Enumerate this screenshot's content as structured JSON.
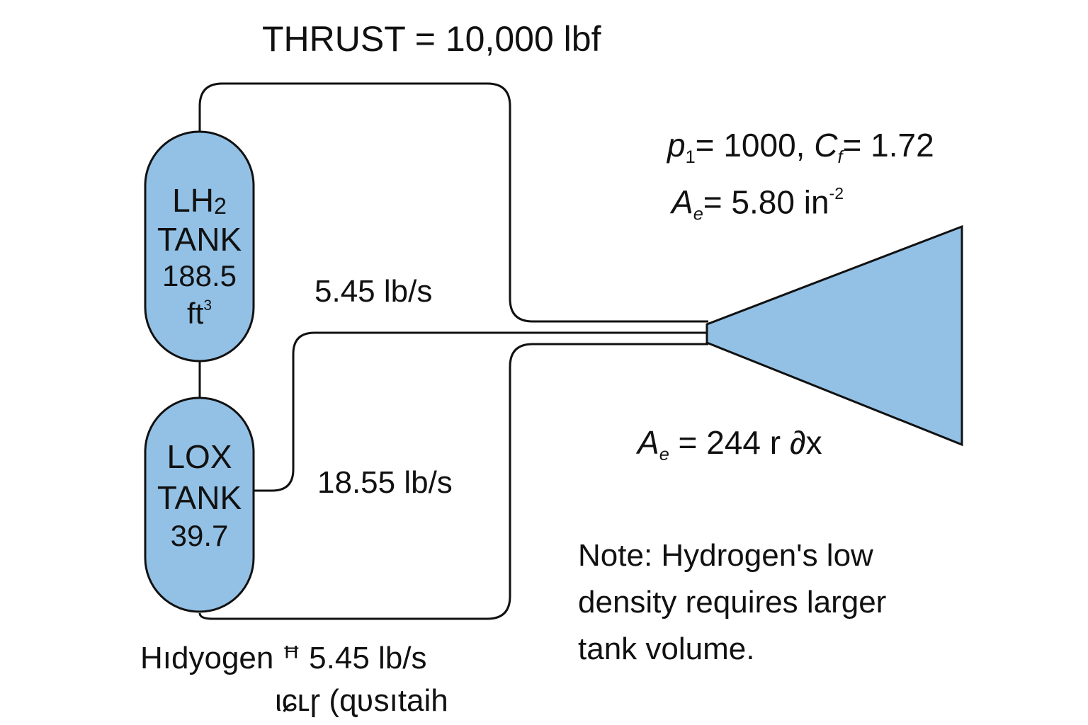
{
  "title": "THRUST = 10,000 lbf",
  "colors": {
    "tank_fill": "#93c1e6",
    "nozzle_fill": "#93c1e6",
    "line": "#111111",
    "background": "#ffffff"
  },
  "lh2_tank": {
    "name_html": "LH<sub class=\"s\" style=\"font-size:0.7em;vertical-align:-0.1em\">2</sub>",
    "label": "TANK",
    "volume": "188.5",
    "unit_html": "ft<sup class=\"s\">3</sup>"
  },
  "lox_tank": {
    "name": "LOX",
    "label": "TANK",
    "volume": "39.7"
  },
  "flows": {
    "upper": "5.45 lb/s",
    "lower": "18.55 lb/s"
  },
  "params": {
    "line1_html": "<span class=\"it\">p</span><sub class=\"s\">1</sub>= 1000, <span class=\"it\">C</span><sub class=\"s it\">f</sub>= 1.72",
    "line2_html": "<span class=\"it\">A</span><sub class=\"s it\">e</sub>= 5.80 in<sup class=\"s\">-2</sup>",
    "exit_html": "<span class=\"it\">A</span><sub class=\"s it\">e</sub> = 244 r <span class=\"it\">∂</span>x"
  },
  "note": {
    "line1": "Note: Hydrogen's low",
    "line2": "density requires larger",
    "line3": "tank volume."
  },
  "footer": {
    "line1": "Hıdyogen ꟸ 5.45 lb/s",
    "line2": "ιɕʟɼ (ɋʋsıtaih"
  }
}
